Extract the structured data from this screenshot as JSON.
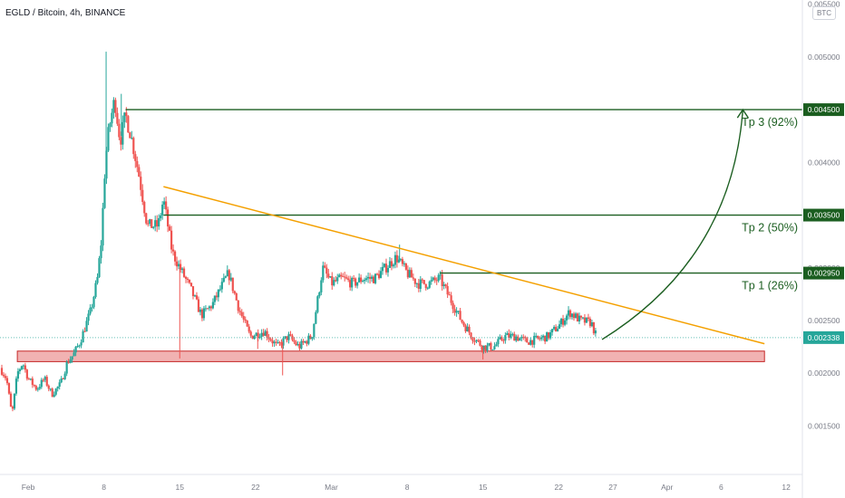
{
  "header": {
    "title": "EGLD / Bitcoin, 4h, BINANCE",
    "currency": "BTC"
  },
  "colors": {
    "up": "#26a69a",
    "down": "#ef5350",
    "level": "#1b5e20",
    "trendline": "#f4a000",
    "support_fill": "#e57373",
    "support_border": "#c62828",
    "current_price": "#26a69a"
  },
  "chart_data": {
    "type": "candlestick",
    "title": "EGLD / Bitcoin, 4h, BINANCE",
    "ylim": [
      0.00104,
      0.00554
    ],
    "y_ticks": [
      "0.001500",
      "0.002000",
      "0.002500",
      "0.003000",
      "0.003500",
      "0.004000",
      "0.004500",
      "0.005000",
      "0.005500"
    ],
    "x_ticks": [
      {
        "label": "Feb",
        "day": 0
      },
      {
        "label": "8",
        "day": 7
      },
      {
        "label": "15",
        "day": 14
      },
      {
        "label": "22",
        "day": 21
      },
      {
        "label": "Mar",
        "day": 28
      },
      {
        "label": "8",
        "day": 35
      },
      {
        "label": "15",
        "day": 42
      },
      {
        "label": "22",
        "day": 49
      },
      {
        "label": "27",
        "day": 54
      },
      {
        "label": "Apr",
        "day": 59
      },
      {
        "label": "6",
        "day": 64
      },
      {
        "label": "12",
        "day": 70
      }
    ],
    "x_range_days": [
      -2.6,
      71.5
    ],
    "last_day": 52.5,
    "key_points": [
      [
        -2.6,
        0.00205
      ],
      [
        -2.0,
        0.00195
      ],
      [
        -1.5,
        0.0016
      ],
      [
        -1.0,
        0.002
      ],
      [
        -0.5,
        0.0021
      ],
      [
        0.0,
        0.00195
      ],
      [
        0.8,
        0.00185
      ],
      [
        1.5,
        0.00195
      ],
      [
        2.2,
        0.0018
      ],
      [
        3.0,
        0.0019
      ],
      [
        3.6,
        0.0021
      ],
      [
        4.2,
        0.00218
      ],
      [
        4.8,
        0.0023
      ],
      [
        5.3,
        0.00245
      ],
      [
        5.8,
        0.0026
      ],
      [
        6.4,
        0.0029
      ],
      [
        6.8,
        0.0033
      ],
      [
        7.0,
        0.0038
      ],
      [
        7.3,
        0.0042
      ],
      [
        7.6,
        0.0044
      ],
      [
        8.0,
        0.0046
      ],
      [
        8.5,
        0.0042
      ],
      [
        9.0,
        0.00445
      ],
      [
        9.5,
        0.00425
      ],
      [
        10.2,
        0.0039
      ],
      [
        11.0,
        0.0034
      ],
      [
        12.0,
        0.0034
      ],
      [
        12.5,
        0.00365
      ],
      [
        13.3,
        0.00315
      ],
      [
        14.0,
        0.003
      ],
      [
        15.0,
        0.0028
      ],
      [
        16.0,
        0.00255
      ],
      [
        17.0,
        0.00265
      ],
      [
        18.5,
        0.00295
      ],
      [
        19.5,
        0.0026
      ],
      [
        20.5,
        0.00235
      ],
      [
        21.8,
        0.0024
      ],
      [
        23.0,
        0.00225
      ],
      [
        24.0,
        0.00235
      ],
      [
        25.0,
        0.00225
      ],
      [
        26.2,
        0.00235
      ],
      [
        27.2,
        0.003
      ],
      [
        28.0,
        0.00285
      ],
      [
        29.0,
        0.0029
      ],
      [
        30.0,
        0.00285
      ],
      [
        31.0,
        0.0029
      ],
      [
        32.0,
        0.0029
      ],
      [
        33.0,
        0.003
      ],
      [
        34.0,
        0.0031
      ],
      [
        35.0,
        0.00295
      ],
      [
        36.0,
        0.00285
      ],
      [
        37.0,
        0.00285
      ],
      [
        38.0,
        0.0029
      ],
      [
        39.0,
        0.0027
      ],
      [
        40.0,
        0.0025
      ],
      [
        41.0,
        0.00235
      ],
      [
        42.0,
        0.00225
      ],
      [
        43.0,
        0.00225
      ],
      [
        44.0,
        0.00235
      ],
      [
        45.0,
        0.00235
      ],
      [
        46.0,
        0.0023
      ],
      [
        47.0,
        0.00232
      ],
      [
        48.0,
        0.00235
      ],
      [
        49.0,
        0.00245
      ],
      [
        50.0,
        0.00258
      ],
      [
        51.0,
        0.0025
      ],
      [
        52.0,
        0.00248
      ],
      [
        52.5,
        0.00234
      ]
    ],
    "spikes": [
      {
        "day": 7.2,
        "value": 0.00505
      },
      {
        "day": 8.6,
        "value": 0.00465
      },
      {
        "day": 14.0,
        "value": 0.00214
      },
      {
        "day": 21.2,
        "value": 0.00223
      },
      {
        "day": 23.5,
        "value": 0.00198
      },
      {
        "day": 34.3,
        "value": 0.00322
      },
      {
        "day": 42.0,
        "value": 0.00213
      }
    ],
    "current_price": {
      "value": 0.002338,
      "label": "0.002338"
    },
    "levels": [
      {
        "name": "Tp 3 (92%)",
        "value": 0.0045,
        "label": "0.004500",
        "start_day": 9.0
      },
      {
        "name": "Tp 2 (50%)",
        "value": 0.0035,
        "label": "0.003500",
        "start_day": 12.5
      },
      {
        "name": "Tp 1 (26%)",
        "value": 0.00295,
        "label": "0.002950",
        "start_day": 38.0
      }
    ],
    "trendline": {
      "start": [
        12.5,
        0.00377
      ],
      "end": [
        68.0,
        0.00228
      ]
    },
    "support_zone": {
      "top": 0.00221,
      "bottom": 0.00211,
      "start_day": -1.0,
      "end_day": 68.0
    },
    "projection": {
      "start": [
        53.0,
        0.00232
      ],
      "end": [
        66.0,
        0.0045
      ]
    }
  }
}
